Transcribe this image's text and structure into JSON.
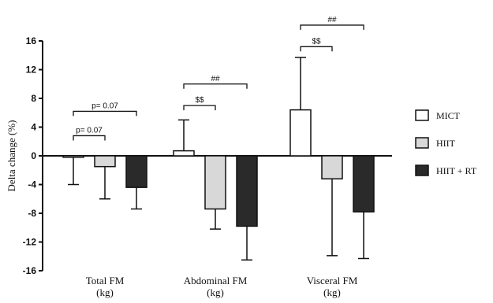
{
  "chart_data": {
    "type": "bar",
    "title": "",
    "xlabel": "",
    "ylabel": "Delta change (%)",
    "ylim": [
      -16,
      16
    ],
    "yticks": [
      16,
      12,
      8,
      4,
      0,
      -4,
      -8,
      -12,
      -16
    ],
    "categories": [
      "Total FM\n(kg)",
      "Abdominal FM\n(kg)",
      "Visceral FM\n(kg)"
    ],
    "series": [
      {
        "name": "MICT",
        "color": "#ffffff",
        "values": [
          -0.2,
          0.7,
          6.4
        ],
        "error": [
          3.8,
          4.3,
          7.3
        ]
      },
      {
        "name": "HIIT",
        "color": "#d8d8d8",
        "values": [
          -1.5,
          -7.4,
          -3.2
        ],
        "error": [
          4.5,
          2.8,
          10.7
        ]
      },
      {
        "name": "HIIT + RT",
        "color": "#2a2a2a",
        "values": [
          -4.4,
          -9.8,
          -7.8
        ],
        "error": [
          3.0,
          4.7,
          6.5
        ]
      }
    ],
    "annotations": [
      {
        "text": "p= 0.07",
        "category": 0,
        "from": 0,
        "to": 1,
        "level": 2.8
      },
      {
        "text": "p= 0.07",
        "category": 0,
        "from": 0,
        "to": 2,
        "level": 6.2
      },
      {
        "text": "$$",
        "category": 1,
        "from": 0,
        "to": 1,
        "level": 7.0
      },
      {
        "text": "##",
        "category": 1,
        "from": 0,
        "to": 2,
        "level": 10.0
      },
      {
        "text": "$$",
        "category": 2,
        "from": 0,
        "to": 1,
        "level": 15.2
      },
      {
        "text": "##",
        "category": 2,
        "from": 0,
        "to": 2,
        "level": 18.2
      }
    ],
    "legend_position": "right",
    "grid": false
  }
}
